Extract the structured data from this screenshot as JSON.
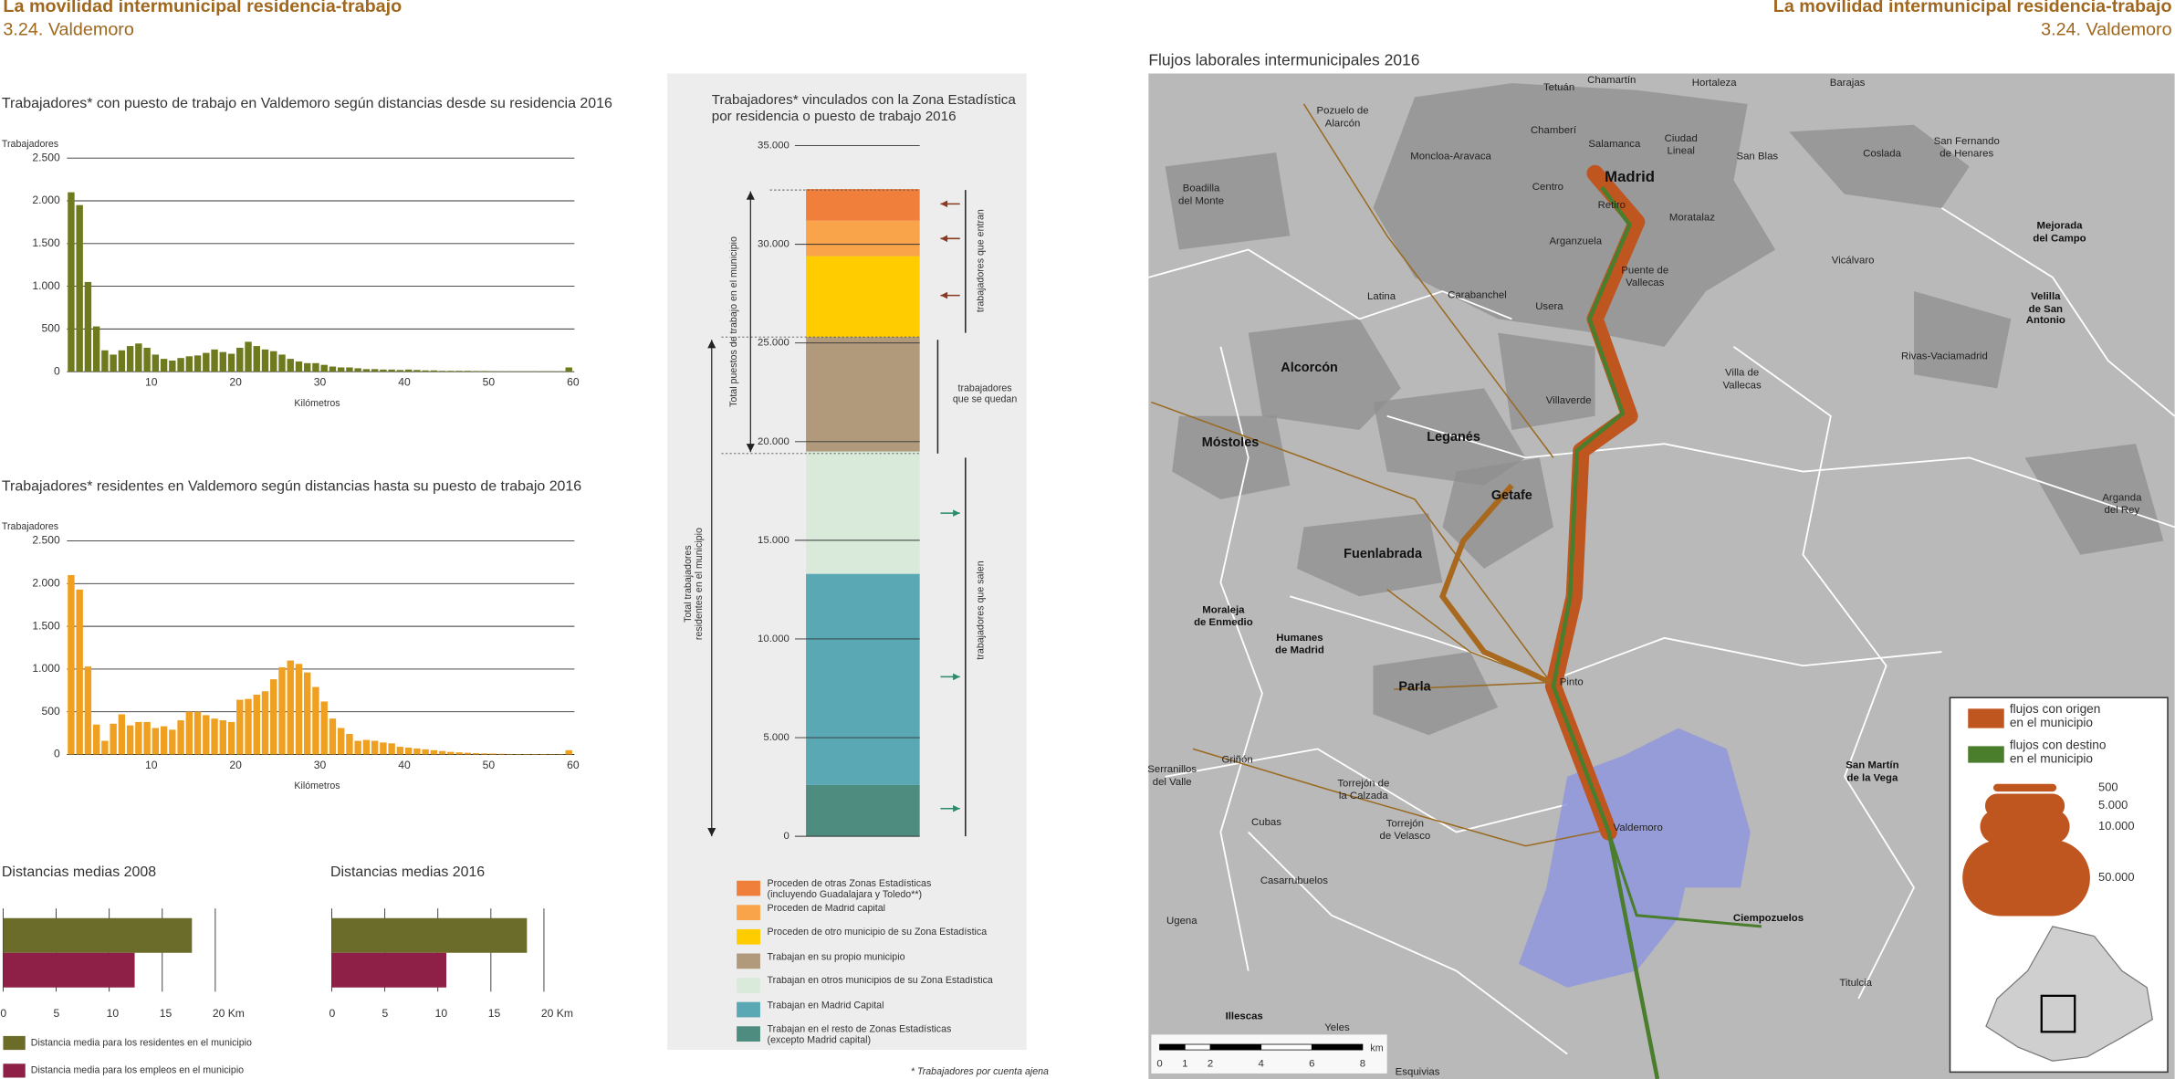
{
  "header": {
    "title": "La movilidad intermunicipal residencia-trabajo",
    "subtitle": "3.24. Valdemoro"
  },
  "chart_data": [
    {
      "type": "histogram",
      "title": "Trabajadores* con puesto de trabajo en Valdemoro según distancias desde su residencia 2016",
      "y_label": "Trabajadores",
      "x_label": "Kilómetros",
      "color": "#6f7a1e",
      "bins": [
        0,
        1,
        2,
        3,
        4,
        5,
        6,
        7,
        8,
        9,
        10,
        11,
        12,
        13,
        14,
        15,
        16,
        17,
        18,
        19,
        20,
        21,
        22,
        23,
        24,
        25,
        26,
        27,
        28,
        29,
        30,
        31,
        32,
        33,
        34,
        35,
        36,
        37,
        38,
        39,
        40,
        41,
        42,
        43,
        44,
        45,
        46,
        47,
        48,
        49,
        50,
        51,
        52,
        53,
        54,
        55,
        56,
        57,
        58,
        59,
        60
      ],
      "values": [
        2100,
        1950,
        1050,
        530,
        250,
        200,
        250,
        300,
        330,
        280,
        200,
        150,
        130,
        160,
        180,
        190,
        220,
        260,
        230,
        210,
        280,
        350,
        300,
        260,
        240,
        200,
        150,
        120,
        100,
        100,
        80,
        60,
        50,
        50,
        40,
        30,
        30,
        25,
        25,
        20,
        25,
        20,
        15,
        15,
        10,
        10,
        10,
        10,
        8,
        8,
        5,
        5,
        5,
        5,
        5,
        5,
        5,
        5,
        5,
        50
      ],
      "xlim": [
        0,
        60
      ],
      "xticks": [
        10,
        20,
        30,
        40,
        50,
        60
      ],
      "ylim": [
        0,
        2500
      ],
      "yticks": [
        0,
        500,
        {
          "value": 1000,
          "label": "1.000"
        },
        {
          "value": 1500,
          "label": "1.500"
        },
        {
          "value": 2000,
          "label": "2.000"
        },
        {
          "value": 2500,
          "label": "2.500"
        }
      ],
      "grid": true
    },
    {
      "type": "histogram",
      "title": "Trabajadores* residentes en Valdemoro según distancias hasta su puesto de trabajo 2016",
      "y_label": "Trabajadores",
      "x_label": "Kilómetros",
      "color": "#f0a020",
      "bins": [
        0,
        1,
        2,
        3,
        4,
        5,
        6,
        7,
        8,
        9,
        10,
        11,
        12,
        13,
        14,
        15,
        16,
        17,
        18,
        19,
        20,
        21,
        22,
        23,
        24,
        25,
        26,
        27,
        28,
        29,
        30,
        31,
        32,
        33,
        34,
        35,
        36,
        37,
        38,
        39,
        40,
        41,
        42,
        43,
        44,
        45,
        46,
        47,
        48,
        49,
        50,
        51,
        52,
        53,
        54,
        55,
        56,
        57,
        58,
        59,
        60
      ],
      "values": [
        2100,
        1930,
        1030,
        350,
        160,
        360,
        470,
        340,
        380,
        380,
        310,
        330,
        290,
        400,
        500,
        500,
        460,
        420,
        400,
        380,
        640,
        650,
        700,
        740,
        880,
        1020,
        1100,
        1060,
        960,
        790,
        620,
        420,
        310,
        240,
        160,
        170,
        160,
        140,
        130,
        90,
        80,
        70,
        60,
        50,
        40,
        30,
        25,
        20,
        15,
        12,
        10,
        8,
        6,
        5,
        5,
        5,
        5,
        4,
        4,
        50
      ],
      "xlim": [
        0,
        60
      ],
      "xticks": [
        10,
        20,
        30,
        40,
        50,
        60
      ],
      "ylim": [
        0,
        2500
      ],
      "yticks": [
        0,
        500,
        {
          "value": 1000,
          "label": "1.000"
        },
        {
          "value": 1500,
          "label": "1.500"
        },
        {
          "value": 2000,
          "label": "2.000"
        },
        {
          "value": 2500,
          "label": "2.500"
        }
      ],
      "grid": true
    },
    {
      "type": "hbar",
      "titles": [
        "Distancias medias 2008",
        "Distancias medias 2016"
      ],
      "series": [
        {
          "name": "Distancia media para los residentes en el municipio",
          "color": "#6b6b2a",
          "values": [
            17.8,
            18.4
          ]
        },
        {
          "name": "Distancia media para los empleos en el municipio",
          "color": "#8e2048",
          "values": [
            12.4,
            10.8
          ]
        }
      ],
      "xlim": [
        0,
        21
      ],
      "xticks": [
        0,
        5,
        10,
        15,
        {
          "value": 20,
          "label": "20 Km"
        }
      ],
      "grid": true
    },
    {
      "type": "stacked",
      "title": "Trabajadores* vinculados con la Zona Estadística\npor residencia o puesto de trabajo 2016",
      "series": [
        {
          "name": "Trabajan en el resto de Zonas Estadísticas\n (excepto Madrid capital)",
          "color": "#4e8c7f",
          "values": [
            2600
          ]
        },
        {
          "name": "Trabajan en Madrid Capital",
          "color": "#5ba8b5",
          "values": [
            10700
          ]
        },
        {
          "name": "Trabajan en otros municipios de su Zona Estadística",
          "color": "#d9eadb",
          "values": [
            6200
          ]
        },
        {
          "name": "Trabajan en su propio municipio",
          "color": "#b09a7b",
          "values": [
            5800
          ]
        },
        {
          "name": "Proceden de otro municipio de su Zona Estadística",
          "color": "#ffcc00",
          "values": [
            4100
          ]
        },
        {
          "name": "Proceden de Madrid capital",
          "color": "#f9a44a",
          "values": [
            1800
          ]
        },
        {
          "name": "Proceden de otras Zonas Estadísticas\n(incluyendo Guadalajara y Toledo**)",
          "color": "#f07f3c",
          "values": [
            1600
          ]
        }
      ],
      "ylim": [
        0,
        35000
      ],
      "yticks": [
        0,
        {
          "value": 5000,
          "label": "5.000"
        },
        {
          "value": 10000,
          "label": "10.000"
        },
        {
          "value": 15000,
          "label": "15.000"
        },
        {
          "value": 20000,
          "label": "20.000"
        },
        {
          "value": 25000,
          "label": "25.000"
        },
        {
          "value": 30000,
          "label": "30.000"
        },
        {
          "value": 35000,
          "label": "35.000"
        }
      ],
      "annotations": [
        "Total puestos de trabajo en el municipio",
        "Total trabajadores\nresidentes en el municipio",
        "trabajadores que entran",
        "trabajadores\nque se quedan",
        "trabajadores que salen"
      ],
      "footnote": "* Trabajadores por cuenta ajena"
    }
  ],
  "map": {
    "title": "Flujos laborales intermunicipales 2016",
    "labels": [
      "Tetuán",
      "Chamartín",
      "Hortaleza",
      "Barajas",
      "Pozuelo de\nAlarcón",
      "Chamberí",
      "Salamanca",
      "Ciudad\nLineal",
      "San Blas",
      "Coslada",
      "San Fernando\nde Henares",
      "Moncloa-Aravaca",
      "Boadilla\ndel Monte",
      "Centro",
      "Madrid",
      "Retiro",
      "Moratalaz",
      "Mejorada\ndel Campo",
      "Arganzuela",
      "Vicálvaro",
      "Puente de\nVallecas",
      "Latina",
      "Carabanchel",
      "Usera",
      "Velilla\nde San\nAntonio",
      "Rivas-Vaciamadrid",
      "Alcorcón",
      "Villa de\nVallecas",
      "Villaverde",
      "Leganés",
      "Móstoles",
      "Getafe",
      "Arganda\ndel Rey",
      "Fuenlabrada",
      "Moraleja\nde Enmedio",
      "Humanes\nde Madrid",
      "Parla",
      "Pinto",
      "Serranillos\ndel Valle",
      "Griñón",
      "San Martín\nde la Vega",
      "Torrejón de\nla Calzada",
      "Cubas",
      "Torrejón\nde Velasco",
      "Valdemoro",
      "Casarrubuelos",
      "Ciempozuelos",
      "Ugena",
      "Titulcia",
      "Illescas",
      "Yeles",
      "Esquivias"
    ],
    "legend": {
      "origin": "flujos con origen\nen el municipio",
      "destination": "flujos con destino\nen el municipio",
      "origin_color": "#c0561f",
      "destination_color": "#4a7d2c",
      "sizes": [
        500,
        {
          "value": 5000,
          "label": "5.000"
        },
        {
          "value": 10000,
          "label": "10.000"
        },
        {
          "value": 50000,
          "label": "50.000"
        }
      ]
    },
    "scale": {
      "unit": "km",
      "ticks": [
        0,
        1,
        2,
        4,
        6,
        8
      ]
    }
  }
}
